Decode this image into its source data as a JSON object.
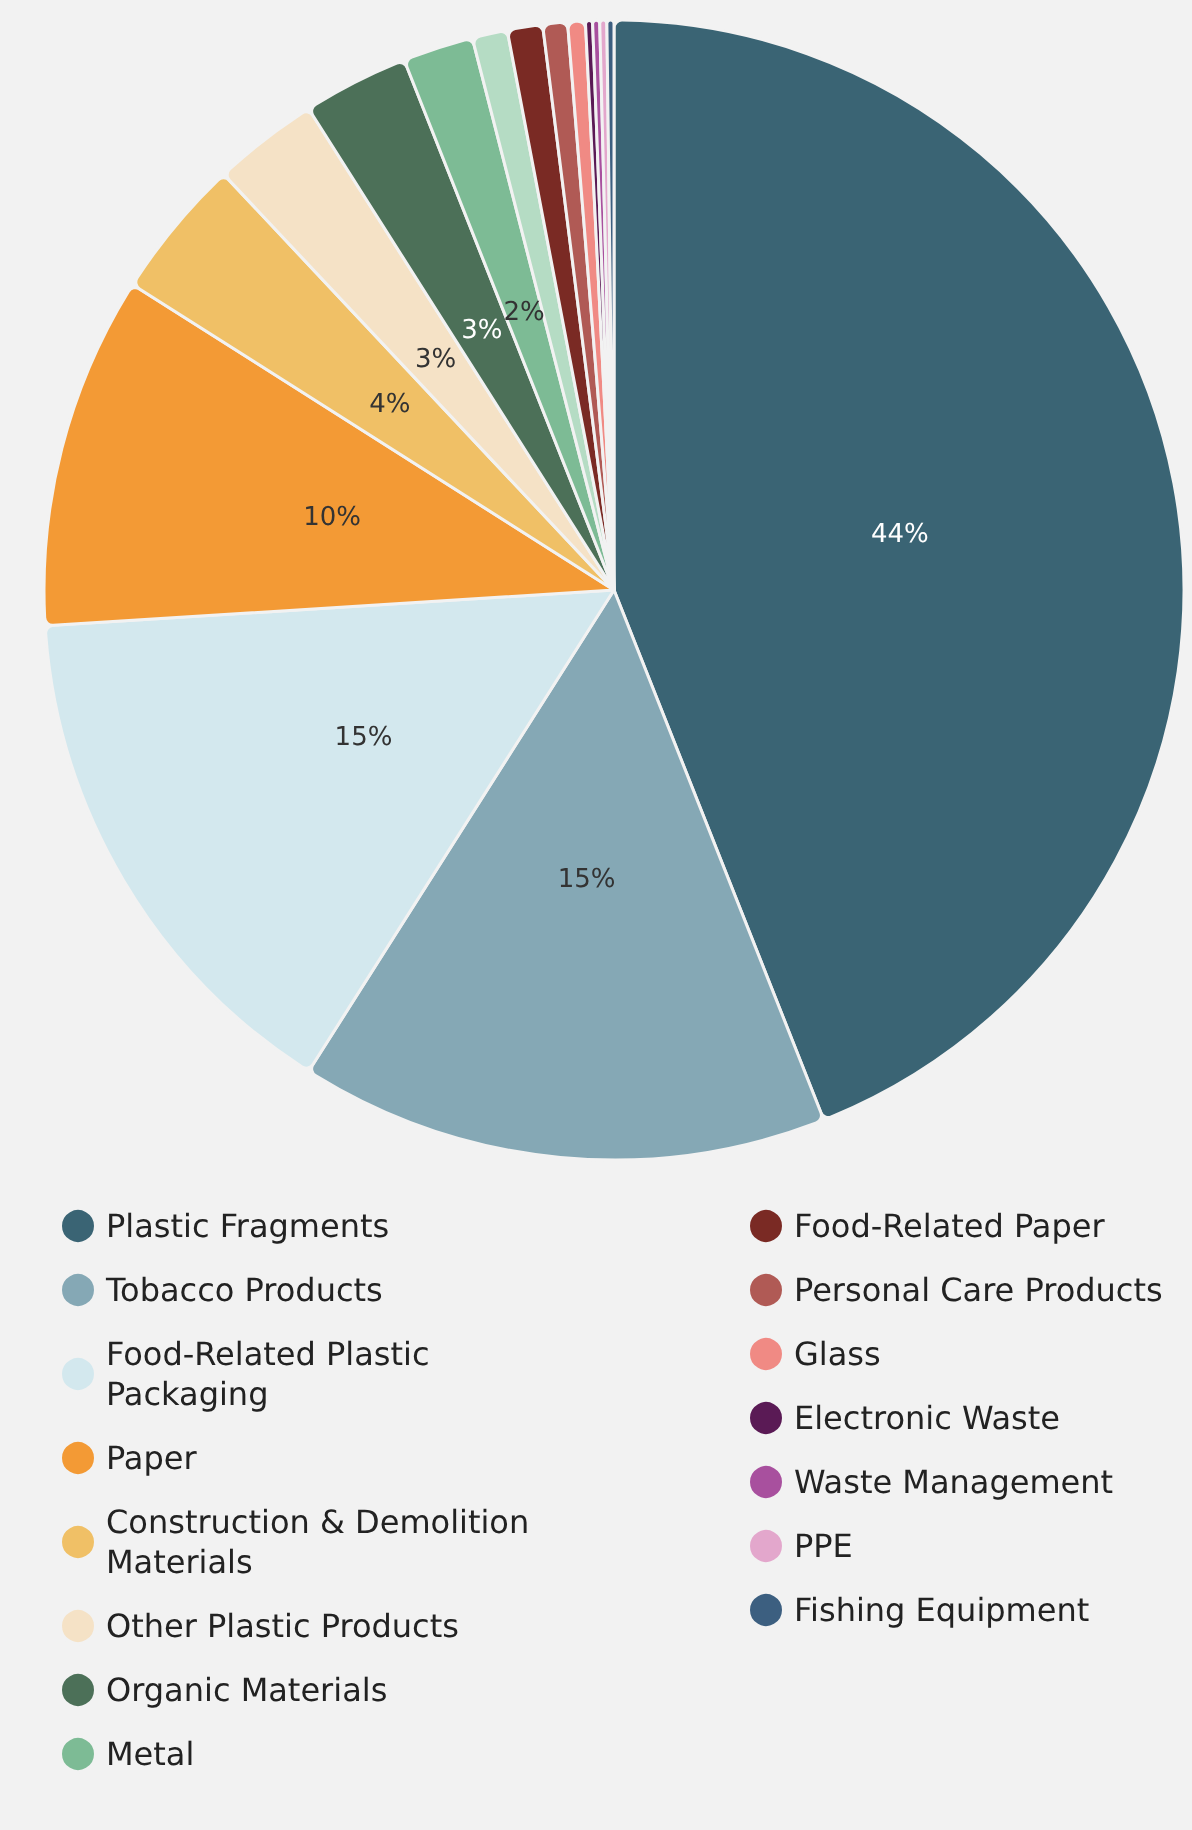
{
  "chart_data": {
    "type": "pie",
    "categories": [
      "Plastic Fragments",
      "Tobacco Products",
      "Food-Related Plastic Packaging",
      "Paper",
      "Construction & Demolition Materials",
      "Other Plastic Products",
      "Organic Materials",
      "Metal",
      null,
      "Food-Related Paper",
      "Personal Care Products",
      "Glass",
      "Electronic Waste",
      "Waste Management",
      "PPE",
      "Fishing Equipment"
    ],
    "values": [
      44,
      15,
      15,
      10,
      4,
      3,
      3,
      2,
      1.0,
      1.0,
      0.7,
      0.5,
      0.2,
      0.2,
      0.2,
      0.2
    ],
    "value_labels": [
      "44%",
      "15%",
      "15%",
      "10%",
      "4%",
      "3%",
      "3%",
      "2%",
      null,
      null,
      null,
      null,
      null,
      null,
      null,
      null
    ],
    "colors": [
      "#3a6474",
      "#85a8b5",
      "#d3e8ee",
      "#f39a35",
      "#f0c066",
      "#f5e2c6",
      "#4c7058",
      "#7dbb95",
      "#b5dcc4",
      "#7a2a24",
      "#b05a55",
      "#f08a84",
      "#5a1a55",
      "#a8509e",
      "#e3a7cc",
      "#3c5f80"
    ],
    "legend": "bottom"
  }
}
